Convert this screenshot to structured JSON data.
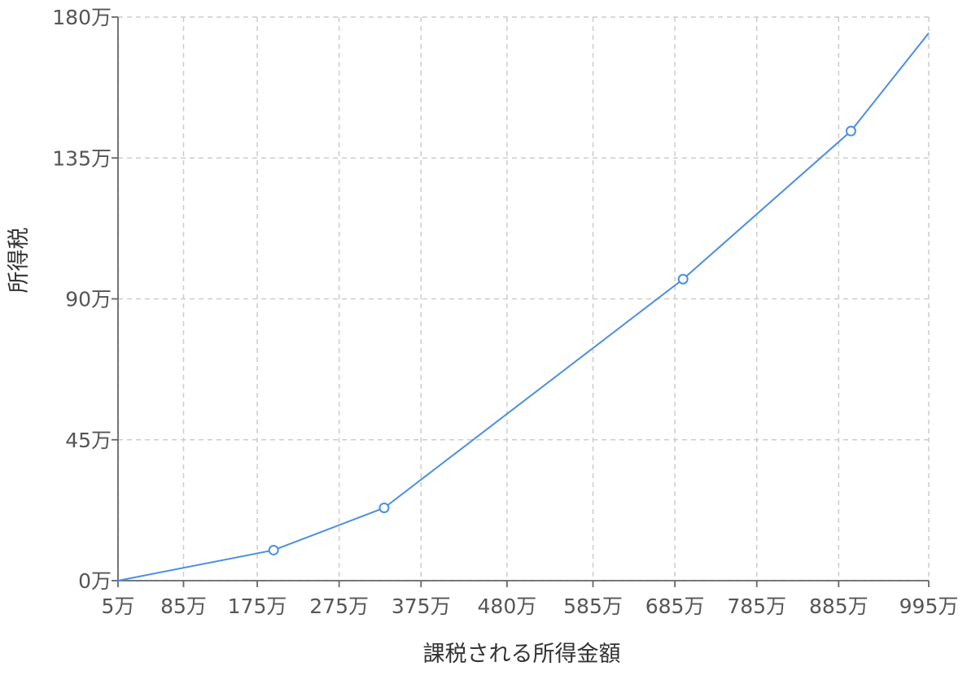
{
  "chart_data": {
    "type": "line",
    "xlabel": "課税される所得金額",
    "ylabel": "所得税",
    "x_tick_labels": [
      "5万",
      "85万",
      "175万",
      "275万",
      "375万",
      "480万",
      "585万",
      "685万",
      "785万",
      "885万",
      "995万"
    ],
    "x_tick_values": [
      5,
      85,
      175,
      275,
      375,
      480,
      585,
      685,
      785,
      885,
      995
    ],
    "y_tick_labels": [
      "0万",
      "45万",
      "90万",
      "135万",
      "180万"
    ],
    "y_tick_values": [
      0,
      45,
      90,
      135,
      180
    ],
    "xlim": [
      5,
      995
    ],
    "ylim": [
      0,
      180
    ],
    "grid": true,
    "series": [
      {
        "color": "#4a8fe2",
        "points": [
          {
            "x": 5,
            "y": 0
          },
          {
            "x": 195,
            "y": 9.75
          },
          {
            "x": 330,
            "y": 23.25
          },
          {
            "x": 695,
            "y": 96.3
          },
          {
            "x": 900,
            "y": 143.6
          },
          {
            "x": 995,
            "y": 174.9
          }
        ],
        "marker_indices": [
          1,
          2,
          3,
          4
        ]
      }
    ]
  }
}
